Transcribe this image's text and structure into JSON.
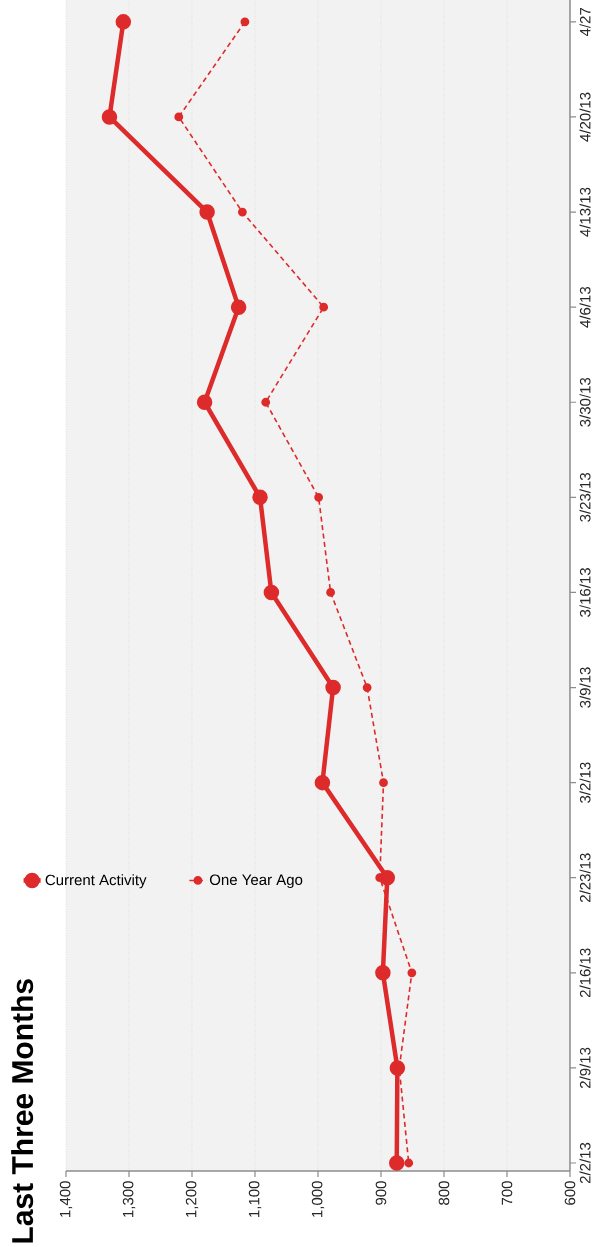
{
  "chart_data": {
    "type": "line",
    "orientation": "horizontal",
    "title": "Last Three Months",
    "categories": [
      "4/27",
      "4/20/13",
      "4/13/13",
      "4/6/13",
      "3/30/13",
      "3/23/13",
      "3/16/13",
      "3/9/13",
      "3/2/13",
      "2/23/13",
      "2/16/13",
      "2/9/13",
      "2/2/13"
    ],
    "series": [
      {
        "name": "Current Activity",
        "color": "#dd2a2a",
        "line_style": "solid",
        "values": [
          1309,
          1331,
          1176,
          1126,
          1180,
          1092,
          1074,
          976,
          993,
          890,
          897,
          874,
          875
        ]
      },
      {
        "name": "One Year Ago",
        "color": "#dd2a2a",
        "line_style": "dashed",
        "values": [
          1116,
          1221,
          1120,
          991,
          1083,
          999,
          980,
          922,
          896,
          902,
          851,
          871,
          856
        ]
      }
    ],
    "xlim": [
      1400,
      600
    ],
    "xticks": [
      {
        "value": 1400,
        "label": "1,400"
      },
      {
        "value": 1300,
        "label": "1,300"
      },
      {
        "value": 1200,
        "label": "1,200"
      },
      {
        "value": 1100,
        "label": "1,100"
      },
      {
        "value": 1000,
        "label": "1,000"
      },
      {
        "value": 900,
        "label": "900"
      },
      {
        "value": 800,
        "label": "800"
      },
      {
        "value": 700,
        "label": "700"
      },
      {
        "value": 600,
        "label": "600"
      }
    ],
    "grid": "x",
    "legend": "left",
    "marker": "circle"
  }
}
